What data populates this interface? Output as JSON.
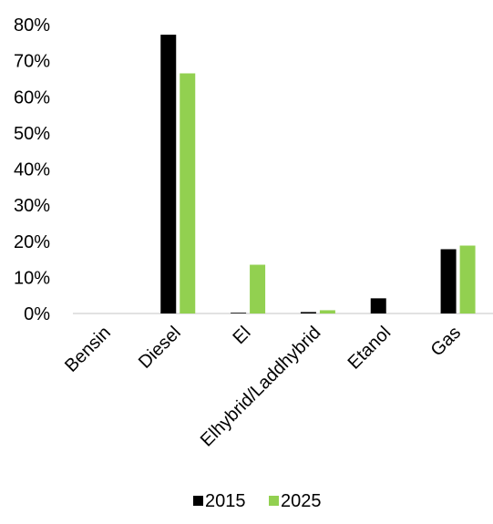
{
  "chart_data": {
    "type": "bar",
    "title": "",
    "xlabel": "",
    "ylabel": "",
    "ylim": [
      0,
      0.8
    ],
    "yticks": [
      {
        "value": 0,
        "label": "0%"
      },
      {
        "value": 0.1,
        "label": "10%"
      },
      {
        "value": 0.2,
        "label": "20%"
      },
      {
        "value": 0.3,
        "label": "30%"
      },
      {
        "value": 0.4,
        "label": "40%"
      },
      {
        "value": 0.5,
        "label": "50%"
      },
      {
        "value": 0.6,
        "label": "60%"
      },
      {
        "value": 0.7,
        "label": "70%"
      },
      {
        "value": 0.8,
        "label": "80%"
      }
    ],
    "grid": false,
    "legend_position": "bottom",
    "categories": [
      "Bensin",
      "Diesel",
      "El",
      "Elhybrid/Laddhybrid",
      "Etanol",
      "Gas"
    ],
    "series": [
      {
        "name": "2015",
        "color": "#000000",
        "values": [
          0,
          0.772,
          0.002,
          0.004,
          0.042,
          0.178
        ]
      },
      {
        "name": "2025",
        "color": "#92d050",
        "values": [
          0,
          0.665,
          0.135,
          0.009,
          0,
          0.188
        ]
      }
    ]
  }
}
